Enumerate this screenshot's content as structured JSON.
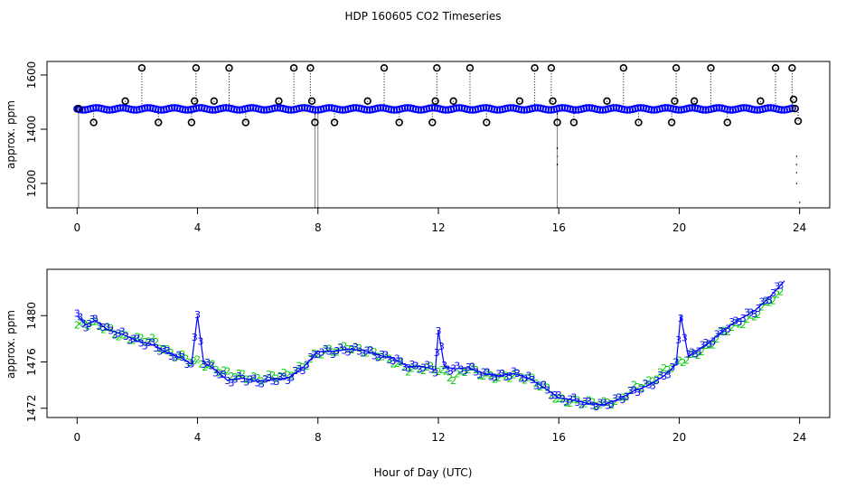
{
  "title": "HDP  160605  CO2 Timeseries",
  "xlabel": "Hour of Day (UTC)",
  "colors": {
    "black": "#000000",
    "blue": "#0000ff",
    "green": "#00cc00"
  },
  "chart_data": [
    {
      "type": "scatter",
      "title": "",
      "ylabel": "approx. ppm",
      "xticks": [
        "0",
        "4",
        "8",
        "12",
        "16",
        "20",
        "24"
      ],
      "yticks": [
        "1200",
        "1400",
        "1600"
      ],
      "xlim": [
        -1,
        25
      ],
      "ylim": [
        1110,
        1650
      ],
      "baseline_ppm": 1475,
      "baseline_x_range": [
        0,
        23.8
      ],
      "series": [
        {
          "marker": "circle",
          "color": "black",
          "with_drop_lines": true,
          "points": [
            [
              0.05,
              1476
            ],
            [
              0.55,
              1425
            ],
            [
              1.6,
              1504
            ],
            [
              2.15,
              1626
            ],
            [
              2.7,
              1425
            ],
            [
              3.8,
              1425
            ],
            [
              3.9,
              1504
            ],
            [
              3.95,
              1626
            ],
            [
              4.55,
              1504
            ],
            [
              5.05,
              1626
            ],
            [
              5.6,
              1425
            ],
            [
              6.7,
              1504
            ],
            [
              7.2,
              1626
            ],
            [
              7.75,
              1626
            ],
            [
              7.8,
              1504
            ],
            [
              7.9,
              1425
            ],
            [
              8.55,
              1425
            ],
            [
              9.65,
              1504
            ],
            [
              10.2,
              1626
            ],
            [
              10.7,
              1425
            ],
            [
              11.8,
              1425
            ],
            [
              11.9,
              1504
            ],
            [
              11.95,
              1626
            ],
            [
              12.5,
              1504
            ],
            [
              13.05,
              1626
            ],
            [
              13.6,
              1425
            ],
            [
              14.7,
              1504
            ],
            [
              15.2,
              1626
            ],
            [
              15.75,
              1626
            ],
            [
              15.8,
              1504
            ],
            [
              15.95,
              1425
            ],
            [
              16.5,
              1425
            ],
            [
              17.6,
              1504
            ],
            [
              18.15,
              1626
            ],
            [
              18.65,
              1425
            ],
            [
              19.75,
              1425
            ],
            [
              19.85,
              1504
            ],
            [
              19.9,
              1626
            ],
            [
              20.5,
              1504
            ],
            [
              21.05,
              1626
            ],
            [
              21.6,
              1425
            ],
            [
              22.7,
              1504
            ],
            [
              23.2,
              1626
            ],
            [
              23.75,
              1626
            ],
            [
              23.8,
              1510
            ],
            [
              23.85,
              1476
            ],
            [
              23.95,
              1430
            ]
          ]
        },
        {
          "marker": "dot",
          "color": "black",
          "with_drop_lines": false,
          "points": [
            [
              15.95,
              1330
            ],
            [
              15.95,
              1300
            ],
            [
              15.95,
              1270
            ],
            [
              23.9,
              1300
            ],
            [
              23.9,
              1270
            ],
            [
              23.9,
              1240
            ],
            [
              23.9,
              1200
            ],
            [
              24.0,
              1130
            ]
          ]
        }
      ]
    },
    {
      "type": "line",
      "title": "",
      "ylabel": "approx. ppm",
      "xticks": [
        "0",
        "4",
        "8",
        "12",
        "16",
        "20",
        "24"
      ],
      "yticks": [
        "1472",
        "1476",
        "1480"
      ],
      "xlim": [
        -1,
        25
      ],
      "ylim": [
        1471.2,
        1484
      ],
      "series": [
        {
          "marker": "3",
          "color": "blue",
          "points": [
            [
              0.0,
              1480.0
            ],
            [
              0.3,
              1479.2
            ],
            [
              0.6,
              1479.6
            ],
            [
              1.0,
              1478.8
            ],
            [
              1.5,
              1478.4
            ],
            [
              2.0,
              1477.8
            ],
            [
              2.5,
              1477.5
            ],
            [
              3.0,
              1476.8
            ],
            [
              3.5,
              1476.3
            ],
            [
              3.8,
              1475.8
            ],
            [
              4.0,
              1480.0
            ],
            [
              4.2,
              1476.0
            ],
            [
              4.6,
              1475.3
            ],
            [
              5.0,
              1474.4
            ],
            [
              5.5,
              1474.6
            ],
            [
              6.0,
              1474.3
            ],
            [
              6.5,
              1474.5
            ],
            [
              7.0,
              1474.6
            ],
            [
              7.5,
              1475.5
            ],
            [
              8.0,
              1476.9
            ],
            [
              8.5,
              1476.9
            ],
            [
              9.0,
              1477.1
            ],
            [
              9.5,
              1477.0
            ],
            [
              10.0,
              1476.6
            ],
            [
              10.5,
              1476.3
            ],
            [
              11.0,
              1475.6
            ],
            [
              11.5,
              1475.6
            ],
            [
              11.9,
              1475.3
            ],
            [
              12.0,
              1478.7
            ],
            [
              12.2,
              1475.6
            ],
            [
              12.5,
              1475.4
            ],
            [
              13.0,
              1475.5
            ],
            [
              13.5,
              1475.0
            ],
            [
              14.0,
              1474.8
            ],
            [
              14.5,
              1475.0
            ],
            [
              15.0,
              1474.6
            ],
            [
              15.5,
              1473.8
            ],
            [
              16.0,
              1472.9
            ],
            [
              16.5,
              1472.7
            ],
            [
              17.0,
              1472.4
            ],
            [
              17.5,
              1472.3
            ],
            [
              18.0,
              1472.8
            ],
            [
              18.5,
              1473.5
            ],
            [
              19.0,
              1474.0
            ],
            [
              19.5,
              1474.8
            ],
            [
              19.9,
              1475.8
            ],
            [
              20.05,
              1480.0
            ],
            [
              20.3,
              1476.5
            ],
            [
              21.0,
              1477.7
            ],
            [
              21.5,
              1478.8
            ],
            [
              22.0,
              1479.7
            ],
            [
              22.5,
              1480.4
            ],
            [
              23.0,
              1481.6
            ],
            [
              23.5,
              1483.0
            ]
          ]
        },
        {
          "marker": "2",
          "color": "green",
          "points": [
            [
              0.0,
              1479.2
            ],
            [
              0.5,
              1479.4
            ],
            [
              1.0,
              1478.9
            ],
            [
              1.5,
              1478.2
            ],
            [
              2.0,
              1478.0
            ],
            [
              2.5,
              1477.9
            ],
            [
              3.0,
              1476.9
            ],
            [
              3.5,
              1476.4
            ],
            [
              4.0,
              1476.0
            ],
            [
              4.5,
              1475.6
            ],
            [
              5.0,
              1475.0
            ],
            [
              5.5,
              1474.8
            ],
            [
              6.0,
              1474.5
            ],
            [
              6.5,
              1474.8
            ],
            [
              7.0,
              1474.9
            ],
            [
              7.5,
              1475.6
            ],
            [
              8.0,
              1476.8
            ],
            [
              8.5,
              1477.0
            ],
            [
              9.0,
              1477.3
            ],
            [
              9.5,
              1477.0
            ],
            [
              10.0,
              1476.7
            ],
            [
              10.5,
              1476.1
            ],
            [
              11.0,
              1475.4
            ],
            [
              11.5,
              1475.5
            ],
            [
              12.0,
              1475.4
            ],
            [
              12.5,
              1474.6
            ],
            [
              13.0,
              1475.5
            ],
            [
              13.5,
              1474.9
            ],
            [
              14.0,
              1474.7
            ],
            [
              14.5,
              1474.9
            ],
            [
              15.0,
              1474.6
            ],
            [
              15.5,
              1473.9
            ],
            [
              16.0,
              1472.7
            ],
            [
              16.5,
              1472.6
            ],
            [
              17.0,
              1472.5
            ],
            [
              17.5,
              1472.4
            ],
            [
              18.0,
              1472.7
            ],
            [
              18.5,
              1473.8
            ],
            [
              19.0,
              1474.2
            ],
            [
              19.5,
              1475.3
            ],
            [
              20.0,
              1476.0
            ],
            [
              20.5,
              1476.6
            ],
            [
              21.0,
              1477.4
            ],
            [
              21.5,
              1478.7
            ],
            [
              22.0,
              1479.3
            ],
            [
              22.5,
              1480.0
            ],
            [
              23.0,
              1481.3
            ],
            [
              23.5,
              1482.1
            ]
          ]
        }
      ]
    }
  ]
}
